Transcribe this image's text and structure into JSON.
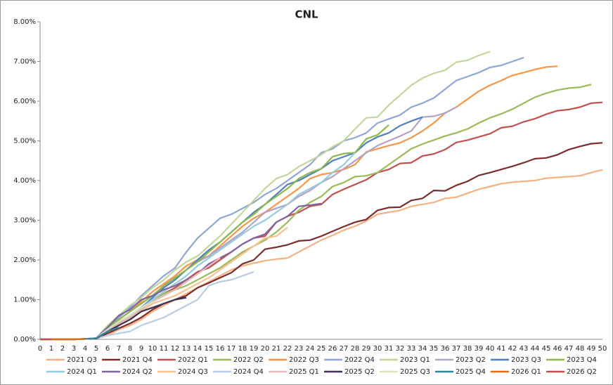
{
  "chart_data": {
    "type": "line",
    "title": "CNL",
    "categories": [
      "0",
      "1",
      "2",
      "3",
      "4",
      "5",
      "6",
      "7",
      "8",
      "9",
      "10",
      "11",
      "12",
      "13",
      "14",
      "15",
      "16",
      "17",
      "18",
      "19",
      "20",
      "21",
      "22",
      "23",
      "24",
      "25",
      "26",
      "27",
      "28",
      "29",
      "30",
      "31",
      "32",
      "33",
      "34",
      "35",
      "36",
      "37",
      "38",
      "39",
      "40",
      "41",
      "42",
      "43",
      "44",
      "45",
      "46",
      "47",
      "48",
      "49",
      "50"
    ],
    "ylim": [
      0,
      8
    ],
    "yticks": [
      {
        "value": 0,
        "label": "0.00%"
      },
      {
        "value": 1,
        "label": "1.00%"
      },
      {
        "value": 2,
        "label": "2.00%"
      },
      {
        "value": 3,
        "label": "3.00%"
      },
      {
        "value": 4,
        "label": "4.00%"
      },
      {
        "value": 5,
        "label": "5.00%"
      },
      {
        "value": 6,
        "label": "6.00%"
      },
      {
        "value": 7,
        "label": "7.00%"
      },
      {
        "value": 8,
        "label": "8.00%"
      }
    ],
    "grid": false,
    "legend": "bottom",
    "series": [
      {
        "name": "2021 Q3",
        "color": "#f4b183",
        "values": [
          0,
          0,
          0,
          0,
          0.01,
          0.02,
          0.1,
          0.25,
          0.35,
          0.5,
          0.7,
          0.85,
          1.0,
          1.15,
          1.3,
          1.45,
          1.6,
          1.75,
          1.85,
          1.92,
          1.98,
          2.02,
          2.05,
          2.2,
          2.35,
          2.5,
          2.62,
          2.75,
          2.85,
          2.98,
          3.15,
          3.2,
          3.25,
          3.35,
          3.4,
          3.45,
          3.55,
          3.58,
          3.68,
          3.78,
          3.85,
          3.92,
          3.96,
          3.98,
          4.0,
          4.06,
          4.08,
          4.1,
          4.12,
          4.2,
          4.27
        ]
      },
      {
        "name": "2021 Q4",
        "color": "#7b2c2c",
        "values": [
          0,
          0,
          0,
          0,
          0.01,
          0.02,
          0.15,
          0.28,
          0.4,
          0.55,
          0.75,
          0.9,
          1.0,
          1.1,
          1.3,
          1.42,
          1.55,
          1.68,
          1.9,
          2.0,
          2.27,
          2.32,
          2.38,
          2.48,
          2.5,
          2.6,
          2.72,
          2.84,
          2.95,
          3.02,
          3.25,
          3.32,
          3.33,
          3.5,
          3.55,
          3.75,
          3.74,
          3.88,
          3.98,
          4.13,
          4.2,
          4.28,
          4.36,
          4.45,
          4.55,
          4.57,
          4.65,
          4.78,
          4.86,
          4.93,
          4.95
        ]
      },
      {
        "name": "2022 Q1",
        "color": "#c0504d",
        "values": [
          0,
          0,
          0,
          0,
          0.01,
          0.03,
          0.2,
          0.4,
          0.55,
          0.8,
          1.0,
          1.15,
          1.3,
          1.5,
          1.7,
          1.8,
          2.0,
          2.2,
          2.4,
          2.55,
          2.6,
          2.95,
          3.1,
          3.2,
          3.35,
          3.4,
          3.65,
          3.78,
          3.9,
          4.02,
          4.2,
          4.28,
          4.43,
          4.45,
          4.62,
          4.67,
          4.78,
          4.96,
          5.02,
          5.1,
          5.18,
          5.33,
          5.37,
          5.48,
          5.56,
          5.67,
          5.76,
          5.79,
          5.85,
          5.95,
          5.97
        ]
      },
      {
        "name": "2022 Q2",
        "color": "#9bbb59",
        "values": [
          0,
          0,
          0,
          0,
          0.01,
          0.03,
          0.25,
          0.45,
          0.6,
          0.8,
          1.0,
          1.15,
          1.25,
          1.35,
          1.5,
          1.65,
          1.8,
          2.0,
          2.2,
          2.35,
          2.5,
          2.7,
          2.95,
          3.25,
          3.45,
          3.6,
          3.85,
          3.95,
          4.1,
          4.12,
          4.2,
          4.4,
          4.6,
          4.8,
          4.92,
          5.02,
          5.12,
          5.2,
          5.3,
          5.45,
          5.58,
          5.68,
          5.8,
          5.95,
          6.1,
          6.2,
          6.28,
          6.33,
          6.35,
          6.42,
          null
        ]
      },
      {
        "name": "2022 Q3",
        "color": "#f79646",
        "values": [
          0,
          0,
          0,
          0,
          0.01,
          0.03,
          0.3,
          0.5,
          0.7,
          0.95,
          1.2,
          1.4,
          1.6,
          1.85,
          2.0,
          2.1,
          2.35,
          2.6,
          2.85,
          3.05,
          3.2,
          3.4,
          3.6,
          3.8,
          4.05,
          4.15,
          4.2,
          4.28,
          4.4,
          4.72,
          4.8,
          4.88,
          4.95,
          5.08,
          5.25,
          5.45,
          5.7,
          5.85,
          6.05,
          6.25,
          6.4,
          6.52,
          6.65,
          6.72,
          6.8,
          6.86,
          6.88,
          null,
          null,
          null,
          null
        ]
      },
      {
        "name": "2022 Q4",
        "color": "#8fa6d6",
        "values": [
          0,
          0,
          0,
          0,
          0.01,
          0.03,
          0.3,
          0.55,
          0.8,
          1.1,
          1.35,
          1.6,
          1.8,
          2.2,
          2.55,
          2.8,
          3.05,
          3.15,
          3.3,
          3.45,
          3.65,
          3.8,
          4.0,
          4.2,
          4.4,
          4.7,
          4.8,
          5.0,
          5.08,
          5.2,
          5.45,
          5.55,
          5.65,
          5.85,
          5.95,
          6.08,
          6.3,
          6.52,
          6.62,
          6.72,
          6.85,
          6.9,
          7.0,
          7.1,
          null,
          null,
          null,
          null,
          null,
          null,
          null
        ]
      },
      {
        "name": "2023 Q1",
        "color": "#c3d69b",
        "values": [
          0,
          0,
          0,
          0,
          0.01,
          0.03,
          0.35,
          0.6,
          0.85,
          1.05,
          1.3,
          1.5,
          1.75,
          1.95,
          2.1,
          2.35,
          2.6,
          2.9,
          3.2,
          3.5,
          3.8,
          4.05,
          4.15,
          4.35,
          4.5,
          4.65,
          4.85,
          5.0,
          5.3,
          5.58,
          5.6,
          5.9,
          6.15,
          6.4,
          6.58,
          6.7,
          6.78,
          6.98,
          7.03,
          7.15,
          7.25,
          null,
          null,
          null,
          null,
          null,
          null,
          null,
          null,
          null,
          null
        ]
      },
      {
        "name": "2023 Q2",
        "color": "#b3a2c7",
        "values": [
          0,
          0,
          0,
          0,
          0.01,
          0.03,
          0.3,
          0.5,
          0.7,
          0.9,
          1.1,
          1.35,
          1.55,
          1.75,
          1.95,
          2.1,
          2.3,
          2.5,
          2.7,
          2.95,
          3.2,
          3.3,
          3.4,
          3.6,
          3.75,
          3.95,
          4.1,
          4.3,
          4.5,
          4.7,
          4.88,
          5.0,
          5.12,
          5.25,
          5.6,
          5.62,
          5.7,
          5.85,
          null,
          null,
          null,
          null,
          null,
          null,
          null,
          null,
          null,
          null,
          null,
          null,
          null
        ]
      },
      {
        "name": "2023 Q3",
        "color": "#4f81bd",
        "values": [
          0,
          0,
          0,
          0,
          0.01,
          0.03,
          0.25,
          0.45,
          0.6,
          0.8,
          1.05,
          1.3,
          1.5,
          1.75,
          2.0,
          2.25,
          2.45,
          2.7,
          2.95,
          3.2,
          3.4,
          3.65,
          3.9,
          4.0,
          4.15,
          4.3,
          4.5,
          4.6,
          4.7,
          4.95,
          5.1,
          5.2,
          5.38,
          5.5,
          5.6,
          null,
          null,
          null,
          null,
          null,
          null,
          null,
          null,
          null,
          null,
          null,
          null,
          null,
          null,
          null,
          null
        ]
      },
      {
        "name": "2023 Q4",
        "color": "#8db94a",
        "values": [
          0,
          0,
          0,
          0,
          0.01,
          0.03,
          0.3,
          0.5,
          0.7,
          0.9,
          1.1,
          1.35,
          1.55,
          1.75,
          1.95,
          2.2,
          2.45,
          2.7,
          2.95,
          3.15,
          3.4,
          3.6,
          3.8,
          4.05,
          4.2,
          4.3,
          4.6,
          4.68,
          4.7,
          5.05,
          5.15,
          5.4,
          null,
          null,
          null,
          null,
          null,
          null,
          null,
          null,
          null,
          null,
          null,
          null,
          null,
          null,
          null,
          null,
          null,
          null,
          null
        ]
      },
      {
        "name": "2024 Q1",
        "color": "#93cddd",
        "values": [
          0,
          0,
          0,
          0,
          0.01,
          0.03,
          0.25,
          0.45,
          0.6,
          0.8,
          1.0,
          1.2,
          1.4,
          1.6,
          1.85,
          2.05,
          2.25,
          2.45,
          2.65,
          2.85,
          3.0,
          3.2,
          3.4,
          3.65,
          3.8,
          3.95,
          4.2,
          4.4,
          4.7,
          null,
          null,
          null,
          null,
          null,
          null,
          null,
          null,
          null,
          null,
          null,
          null,
          null,
          null,
          null,
          null,
          null,
          null,
          null,
          null,
          null,
          null
        ]
      },
      {
        "name": "2024 Q2",
        "color": "#8064a2",
        "values": [
          0,
          0,
          0,
          0,
          0.01,
          0.03,
          0.3,
          0.6,
          0.75,
          1.0,
          1.1,
          1.25,
          1.35,
          1.5,
          1.65,
          1.9,
          2.05,
          2.2,
          2.4,
          2.55,
          2.65,
          2.95,
          3.1,
          3.35,
          3.38,
          3.42,
          null,
          null,
          null,
          null,
          null,
          null,
          null,
          null,
          null,
          null,
          null,
          null,
          null,
          null,
          null,
          null,
          null,
          null,
          null,
          null,
          null,
          null,
          null,
          null,
          null
        ]
      },
      {
        "name": "2024 Q3",
        "color": "#fac090",
        "values": [
          0,
          0,
          0,
          0,
          0.01,
          0.03,
          0.2,
          0.35,
          0.5,
          0.7,
          0.9,
          1.0,
          1.1,
          1.25,
          1.4,
          1.55,
          1.75,
          1.95,
          2.15,
          2.35,
          2.55,
          2.6,
          2.82,
          null,
          null,
          null,
          null,
          null,
          null,
          null,
          null,
          null,
          null,
          null,
          null,
          null,
          null,
          null,
          null,
          null,
          null,
          null,
          null,
          null,
          null,
          null,
          null,
          null,
          null,
          null,
          null
        ]
      },
      {
        "name": "2024 Q4",
        "color": "#b9cde5",
        "values": [
          0,
          0,
          0,
          0,
          0.01,
          0.02,
          0.1,
          0.15,
          0.2,
          0.35,
          0.45,
          0.55,
          0.7,
          0.85,
          1.0,
          1.35,
          1.45,
          1.5,
          1.6,
          1.7,
          null,
          null,
          null,
          null,
          null,
          null,
          null,
          null,
          null,
          null,
          null,
          null,
          null,
          null,
          null,
          null,
          null,
          null,
          null,
          null,
          null,
          null,
          null,
          null,
          null,
          null,
          null,
          null,
          null,
          null,
          null
        ]
      },
      {
        "name": "2025 Q1",
        "color": "#e6b9b8",
        "values": [
          0,
          0,
          0,
          0,
          0.01,
          0.03,
          0.2,
          0.4,
          0.55,
          0.75,
          0.95,
          1.1,
          1.25,
          1.45,
          1.65,
          1.85,
          2.05,
          null,
          null,
          null,
          null,
          null,
          null,
          null,
          null,
          null,
          null,
          null,
          null,
          null,
          null,
          null,
          null,
          null,
          null,
          null,
          null,
          null,
          null,
          null,
          null,
          null,
          null,
          null,
          null,
          null,
          null,
          null,
          null,
          null,
          null
        ]
      },
      {
        "name": "2025 Q2",
        "color": "#403152",
        "values": [
          0,
          0,
          0,
          0,
          0.01,
          0.02,
          0.2,
          0.35,
          0.5,
          0.7,
          0.8,
          0.9,
          1.0,
          1.05,
          null,
          null,
          null,
          null,
          null,
          null,
          null,
          null,
          null,
          null,
          null,
          null,
          null,
          null,
          null,
          null,
          null,
          null,
          null,
          null,
          null,
          null,
          null,
          null,
          null,
          null,
          null,
          null,
          null,
          null,
          null,
          null,
          null,
          null,
          null,
          null,
          null
        ]
      },
      {
        "name": "2025 Q3",
        "color": "#d7e4bd",
        "values": [
          0,
          0,
          0,
          0,
          0.01,
          0.03,
          0.25,
          0.45,
          0.6,
          0.8,
          0.95,
          null,
          null,
          null,
          null,
          null,
          null,
          null,
          null,
          null,
          null,
          null,
          null,
          null,
          null,
          null,
          null,
          null,
          null,
          null,
          null,
          null,
          null,
          null,
          null,
          null,
          null,
          null,
          null,
          null,
          null,
          null,
          null,
          null,
          null,
          null,
          null,
          null,
          null,
          null,
          null
        ]
      },
      {
        "name": "2025 Q4",
        "color": "#31859c",
        "values": [
          0,
          0,
          0,
          0,
          0.01,
          0.03,
          0.2,
          0.3,
          null,
          null,
          null,
          null,
          null,
          null,
          null,
          null,
          null,
          null,
          null,
          null,
          null,
          null,
          null,
          null,
          null,
          null,
          null,
          null,
          null,
          null,
          null,
          null,
          null,
          null,
          null,
          null,
          null,
          null,
          null,
          null,
          null,
          null,
          null,
          null,
          null,
          null,
          null,
          null,
          null,
          null,
          null
        ]
      },
      {
        "name": "2026 Q1",
        "color": "#e46c0a",
        "values": [
          0,
          0,
          0,
          0,
          0.01,
          null,
          null,
          null,
          null,
          null,
          null,
          null,
          null,
          null,
          null,
          null,
          null,
          null,
          null,
          null,
          null,
          null,
          null,
          null,
          null,
          null,
          null,
          null,
          null,
          null,
          null,
          null,
          null,
          null,
          null,
          null,
          null,
          null,
          null,
          null,
          null,
          null,
          null,
          null,
          null,
          null,
          null,
          null,
          null,
          null,
          null
        ]
      },
      {
        "name": "2026 Q2",
        "color": "#c0504d",
        "values": [
          0,
          0,
          null,
          null,
          null,
          null,
          null,
          null,
          null,
          null,
          null,
          null,
          null,
          null,
          null,
          null,
          null,
          null,
          null,
          null,
          null,
          null,
          null,
          null,
          null,
          null,
          null,
          null,
          null,
          null,
          null,
          null,
          null,
          null,
          null,
          null,
          null,
          null,
          null,
          null,
          null,
          null,
          null,
          null,
          null,
          null,
          null,
          null,
          null,
          null,
          null
        ]
      }
    ]
  }
}
